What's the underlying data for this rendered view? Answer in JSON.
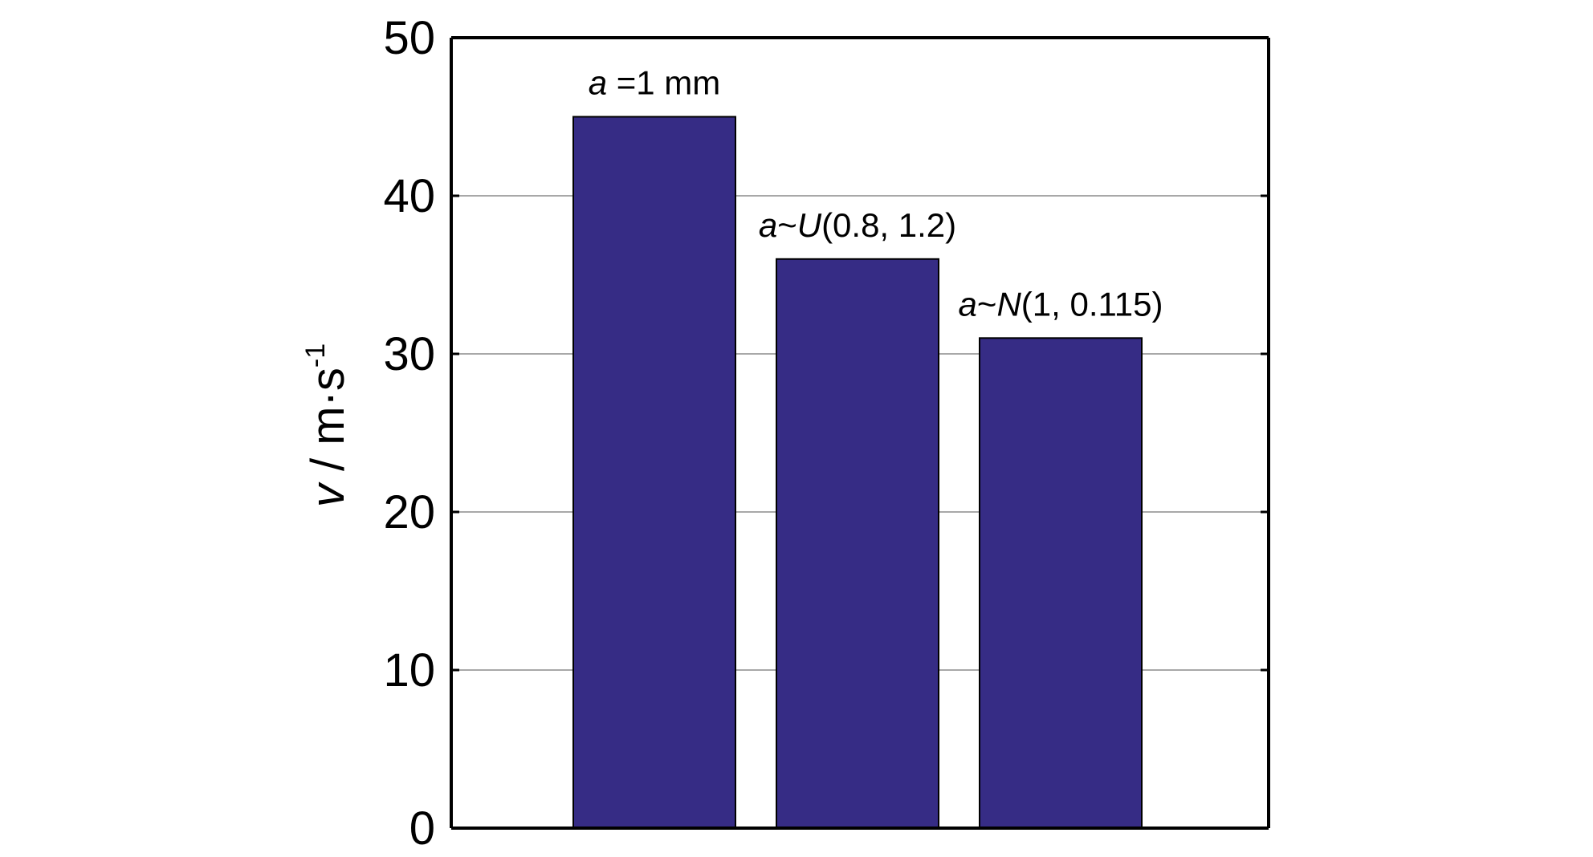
{
  "chart_data": {
    "type": "bar",
    "categories": [
      "a =1 mm",
      "a~U(0.8, 1.2)",
      "a~N(1, 0.115)"
    ],
    "values": [
      45,
      36,
      31
    ],
    "bar_labels": [
      [
        {
          "t": "a",
          "i": true
        },
        {
          "t": " =1 mm",
          "i": false
        }
      ],
      [
        {
          "t": "a",
          "i": true
        },
        {
          "t": "~",
          "i": false
        },
        {
          "t": "U",
          "i": true
        },
        {
          "t": "(0.8, 1.2)",
          "i": false
        }
      ],
      [
        {
          "t": "a",
          "i": true
        },
        {
          "t": "~",
          "i": false
        },
        {
          "t": "N",
          "i": true
        },
        {
          "t": "(1, 0.115)",
          "i": false
        }
      ]
    ],
    "title": "",
    "xlabel": "",
    "ylabel": "v / m·s-1",
    "ylabel_parts": {
      "var": "v",
      "unit": " / m·s",
      "exp": "-1"
    },
    "ylim": [
      0,
      50
    ],
    "yticks": [
      0,
      10,
      20,
      30,
      40,
      50
    ],
    "grid": true,
    "colors": {
      "bar": "#362c85",
      "grid": "#8c8c8c",
      "frame": "#000000"
    }
  }
}
